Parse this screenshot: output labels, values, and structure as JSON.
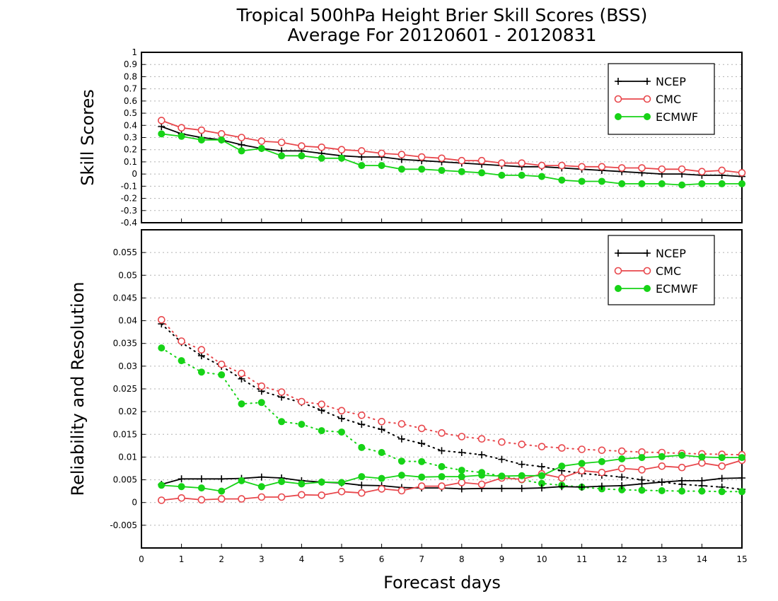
{
  "title": {
    "line1": "Tropical 500hPa Height Brier Skill Scores (BSS)",
    "line2": "Average For 20120601 - 20120831"
  },
  "xlabel": "Forecast days",
  "colors": {
    "NCEP": "#000000",
    "CMC": "#e8474c",
    "ECMWF": "#17d317"
  },
  "chart_data": [
    {
      "type": "line",
      "name": "skill-scores",
      "ylabel": "Skill Scores",
      "xlim": [
        0,
        15
      ],
      "ylim": [
        -0.4,
        1
      ],
      "yticks": [
        "-0.4",
        "-0.3",
        "-0.2",
        "-0.1",
        "0",
        "0.1",
        "0.2",
        "0.3",
        "0.4",
        "0.5",
        "0.6",
        "0.7",
        "0.8",
        "0.9",
        "1"
      ],
      "grid": true,
      "legend_position": "top-right",
      "x": [
        0.5,
        1,
        1.5,
        2,
        2.5,
        3,
        3.5,
        4,
        4.5,
        5,
        5.5,
        6,
        6.5,
        7,
        7.5,
        8,
        8.5,
        9,
        9.5,
        10,
        10.5,
        11,
        11.5,
        12,
        12.5,
        13,
        13.5,
        14,
        14.5,
        15
      ],
      "series": [
        {
          "name": "NCEP",
          "marker": "plus",
          "style": "solid",
          "values": [
            0.39,
            0.33,
            0.3,
            0.28,
            0.24,
            0.21,
            0.19,
            0.19,
            0.17,
            0.15,
            0.14,
            0.14,
            0.12,
            0.11,
            0.1,
            0.09,
            0.08,
            0.07,
            0.06,
            0.06,
            0.05,
            0.04,
            0.03,
            0.02,
            0.01,
            0.0,
            0.0,
            -0.01,
            -0.01,
            -0.02
          ]
        },
        {
          "name": "CMC",
          "marker": "open-circle",
          "style": "solid",
          "values": [
            0.44,
            0.38,
            0.36,
            0.33,
            0.3,
            0.27,
            0.26,
            0.23,
            0.22,
            0.2,
            0.19,
            0.17,
            0.16,
            0.14,
            0.13,
            0.11,
            0.11,
            0.09,
            0.09,
            0.07,
            0.07,
            0.06,
            0.06,
            0.05,
            0.05,
            0.04,
            0.04,
            0.02,
            0.03,
            0.01
          ]
        },
        {
          "name": "ECMWF",
          "marker": "filled-circle",
          "style": "solid",
          "values": [
            0.33,
            0.31,
            0.28,
            0.28,
            0.19,
            0.21,
            0.15,
            0.15,
            0.13,
            0.13,
            0.07,
            0.07,
            0.04,
            0.04,
            0.03,
            0.02,
            0.01,
            -0.01,
            -0.01,
            -0.02,
            -0.05,
            -0.06,
            -0.06,
            -0.08,
            -0.08,
            -0.08,
            -0.09,
            -0.08,
            -0.08,
            -0.08
          ]
        }
      ]
    },
    {
      "type": "line",
      "name": "reliability-resolution",
      "ylabel": "Reliability and Resolution",
      "xlim": [
        0,
        15
      ],
      "ylim": [
        -0.01,
        0.06
      ],
      "yticks": [
        "-0.005",
        "0",
        "0.005",
        "0.01",
        "0.015",
        "0.02",
        "0.025",
        "0.03",
        "0.035",
        "0.04",
        "0.045",
        "0.05",
        "0.055"
      ],
      "xticks": [
        "0",
        "1",
        "2",
        "3",
        "4",
        "5",
        "6",
        "7",
        "8",
        "9",
        "10",
        "11",
        "12",
        "13",
        "14",
        "15"
      ],
      "grid": true,
      "legend_position": "top-right",
      "x": [
        0.5,
        1,
        1.5,
        2,
        2.5,
        3,
        3.5,
        4,
        4.5,
        5,
        5.5,
        6,
        6.5,
        7,
        7.5,
        8,
        8.5,
        9,
        9.5,
        10,
        10.5,
        11,
        11.5,
        12,
        12.5,
        13,
        13.5,
        14,
        14.5,
        15
      ],
      "series": [
        {
          "name": "NCEP",
          "marker": "plus",
          "style": "dotted",
          "values": [
            0.0393,
            0.0352,
            0.0323,
            0.03,
            0.0272,
            0.0245,
            0.0232,
            0.022,
            0.0203,
            0.0185,
            0.0172,
            0.0161,
            0.014,
            0.013,
            0.0114,
            0.011,
            0.0105,
            0.0095,
            0.0084,
            0.0079,
            0.007,
            0.0064,
            0.006,
            0.0056,
            0.005,
            0.0045,
            0.004,
            0.0037,
            0.0034,
            0.0029
          ]
        },
        {
          "name": "CMC",
          "marker": "open-circle",
          "style": "dotted",
          "values": [
            0.0402,
            0.0355,
            0.0336,
            0.0304,
            0.0284,
            0.0256,
            0.0243,
            0.0222,
            0.0216,
            0.0202,
            0.0192,
            0.0178,
            0.0173,
            0.0163,
            0.0153,
            0.0145,
            0.014,
            0.0133,
            0.0128,
            0.0123,
            0.012,
            0.0117,
            0.0115,
            0.0113,
            0.0111,
            0.011,
            0.0108,
            0.0107,
            0.0106,
            0.0105
          ]
        },
        {
          "name": "ECMWF",
          "marker": "filled-circle",
          "style": "dotted",
          "values": [
            0.034,
            0.0312,
            0.0287,
            0.0281,
            0.0217,
            0.022,
            0.0178,
            0.0172,
            0.0158,
            0.0155,
            0.0121,
            0.011,
            0.0091,
            0.009,
            0.0079,
            0.0071,
            0.0066,
            0.0058,
            0.005,
            0.0042,
            0.0038,
            0.0034,
            0.003,
            0.0028,
            0.0027,
            0.0026,
            0.0025,
            0.0025,
            0.0024,
            0.0024
          ]
        },
        {
          "name": "NCEP",
          "marker": "plus",
          "style": "solid",
          "values": [
            0.004,
            0.0052,
            0.0052,
            0.0052,
            0.0053,
            0.0056,
            0.0054,
            0.0048,
            0.0045,
            0.0043,
            0.0038,
            0.0037,
            0.0033,
            0.0032,
            0.0032,
            0.003,
            0.0031,
            0.0031,
            0.0031,
            0.0032,
            0.0035,
            0.0034,
            0.0036,
            0.0037,
            0.0041,
            0.0045,
            0.0048,
            0.0048,
            0.0053,
            0.0054
          ]
        },
        {
          "name": "CMC",
          "marker": "open-circle",
          "style": "solid",
          "values": [
            0.0005,
            0.001,
            0.0006,
            0.0008,
            0.0008,
            0.0012,
            0.0012,
            0.0017,
            0.0016,
            0.0024,
            0.0021,
            0.003,
            0.0026,
            0.0036,
            0.0036,
            0.0044,
            0.004,
            0.0054,
            0.0051,
            0.0063,
            0.0054,
            0.007,
            0.0066,
            0.0075,
            0.0072,
            0.008,
            0.0077,
            0.0087,
            0.008,
            0.0093
          ]
        },
        {
          "name": "ECMWF",
          "marker": "filled-circle",
          "style": "solid",
          "values": [
            0.0038,
            0.0035,
            0.0032,
            0.0025,
            0.0048,
            0.0035,
            0.0046,
            0.0041,
            0.0045,
            0.0044,
            0.0057,
            0.0053,
            0.006,
            0.0056,
            0.0057,
            0.0057,
            0.006,
            0.0058,
            0.0059,
            0.0059,
            0.008,
            0.0086,
            0.009,
            0.0096,
            0.0099,
            0.0101,
            0.0104,
            0.01,
            0.0099,
            0.0099
          ]
        }
      ]
    }
  ]
}
